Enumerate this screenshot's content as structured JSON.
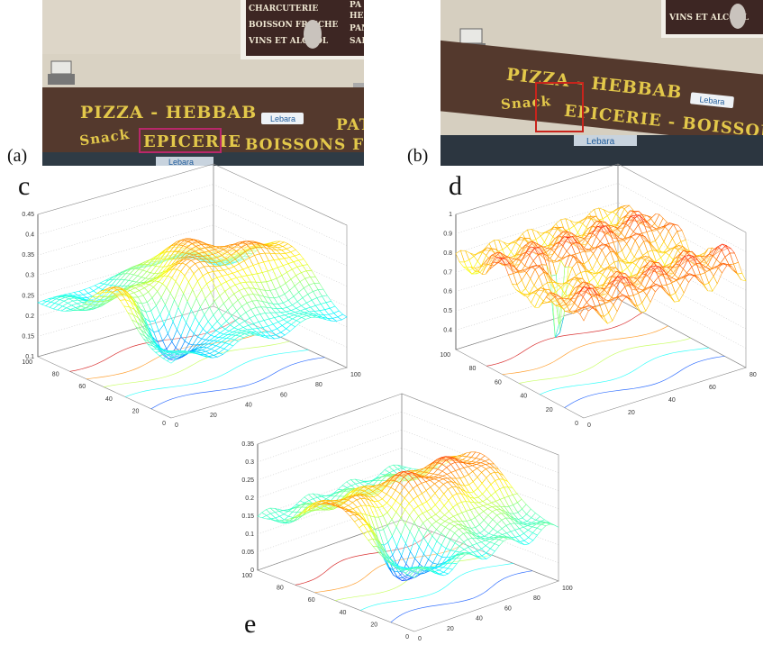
{
  "labels": {
    "a": "(a)",
    "b": "(b)",
    "c": "c",
    "d": "d",
    "e": "e"
  },
  "photo_a": {
    "upper_sign": [
      "CHARCUTERIE",
      "BOISSON FRAICHE",
      "VINS ET ALCOOL"
    ],
    "upper_side": [
      "PA",
      "HEB",
      "PAN",
      "SALA"
    ],
    "line1": "PIZZA - HEBBAB",
    "line2_left": "Snack",
    "line2_mid": "EPICERIE",
    "line2_right": "- BOISSONS FR",
    "right_edge": "PAT",
    "lebara": "Lebara",
    "lebara_bottom": "Lebara"
  },
  "photo_b": {
    "upper_sign": [
      "VINS ET ALCOOL"
    ],
    "line1": "PIZZA - HEBBAB",
    "line2_left": "Snack",
    "line2_mid": "EPICERIE - BOISSONS",
    "lebara": "Lebara",
    "lebara_bottom": "Lebara"
  },
  "colors": {
    "sign_bg": "#54392d",
    "sign_text": "#e3c84a",
    "wall": "#d8d1c2",
    "roi_a": "#b8286a",
    "roi_b": "#c8241c"
  },
  "chart_data": [
    {
      "panel": "c",
      "type": "surface",
      "x_ticks": [
        "0",
        "20",
        "40",
        "60",
        "80",
        "100"
      ],
      "y_ticks": [
        "0",
        "20",
        "40",
        "60",
        "80",
        "100"
      ],
      "z_ticks": [
        "0.1",
        "0.15",
        "0.2",
        "0.25",
        "0.3",
        "0.35",
        "0.4",
        "0.45"
      ],
      "zlim": [
        0.1,
        0.45
      ]
    },
    {
      "panel": "d",
      "type": "surface",
      "x_ticks": [
        "0",
        "20",
        "40",
        "60",
        "80"
      ],
      "y_ticks": [
        "0",
        "20",
        "40",
        "60",
        "80",
        "100"
      ],
      "z_ticks": [
        "0.4",
        "0.5",
        "0.6",
        "0.7",
        "0.8",
        "0.9",
        "1"
      ],
      "zlim": [
        0.3,
        1.0
      ]
    },
    {
      "panel": "e",
      "type": "surface",
      "x_ticks": [
        "0",
        "20",
        "40",
        "60",
        "80",
        "100"
      ],
      "y_ticks": [
        "0",
        "20",
        "40",
        "60",
        "80",
        "100"
      ],
      "z_ticks": [
        "0",
        "0.05",
        "0.1",
        "0.15",
        "0.2",
        "0.25",
        "0.3",
        "0.35"
      ],
      "zlim": [
        0,
        0.35
      ]
    }
  ]
}
